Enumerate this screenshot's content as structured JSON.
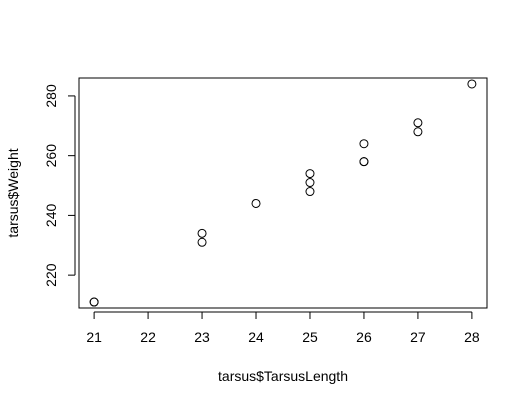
{
  "chart_data": {
    "type": "scatter",
    "title": "",
    "xlabel": "tarsus$TarsusLength",
    "ylabel": "tarsus$Weight",
    "xlim": [
      20.72,
      28.28
    ],
    "ylim": [
      209,
      286
    ],
    "xticks": [
      21,
      22,
      23,
      24,
      25,
      26,
      27,
      28
    ],
    "yticks": [
      220,
      240,
      260,
      280
    ],
    "grid": false,
    "legend": "none",
    "marker": "open-circle",
    "colors": {
      "axis": "#000000",
      "points": "#000000",
      "background": "#ffffff"
    },
    "points": [
      {
        "x": 21,
        "y": 211
      },
      {
        "x": 21,
        "y": 211
      },
      {
        "x": 23,
        "y": 231
      },
      {
        "x": 23,
        "y": 234
      },
      {
        "x": 24,
        "y": 244
      },
      {
        "x": 25,
        "y": 248
      },
      {
        "x": 25,
        "y": 251
      },
      {
        "x": 25,
        "y": 254
      },
      {
        "x": 26,
        "y": 258
      },
      {
        "x": 26,
        "y": 258
      },
      {
        "x": 26,
        "y": 264
      },
      {
        "x": 27,
        "y": 268
      },
      {
        "x": 27,
        "y": 271
      },
      {
        "x": 28,
        "y": 284
      }
    ]
  }
}
